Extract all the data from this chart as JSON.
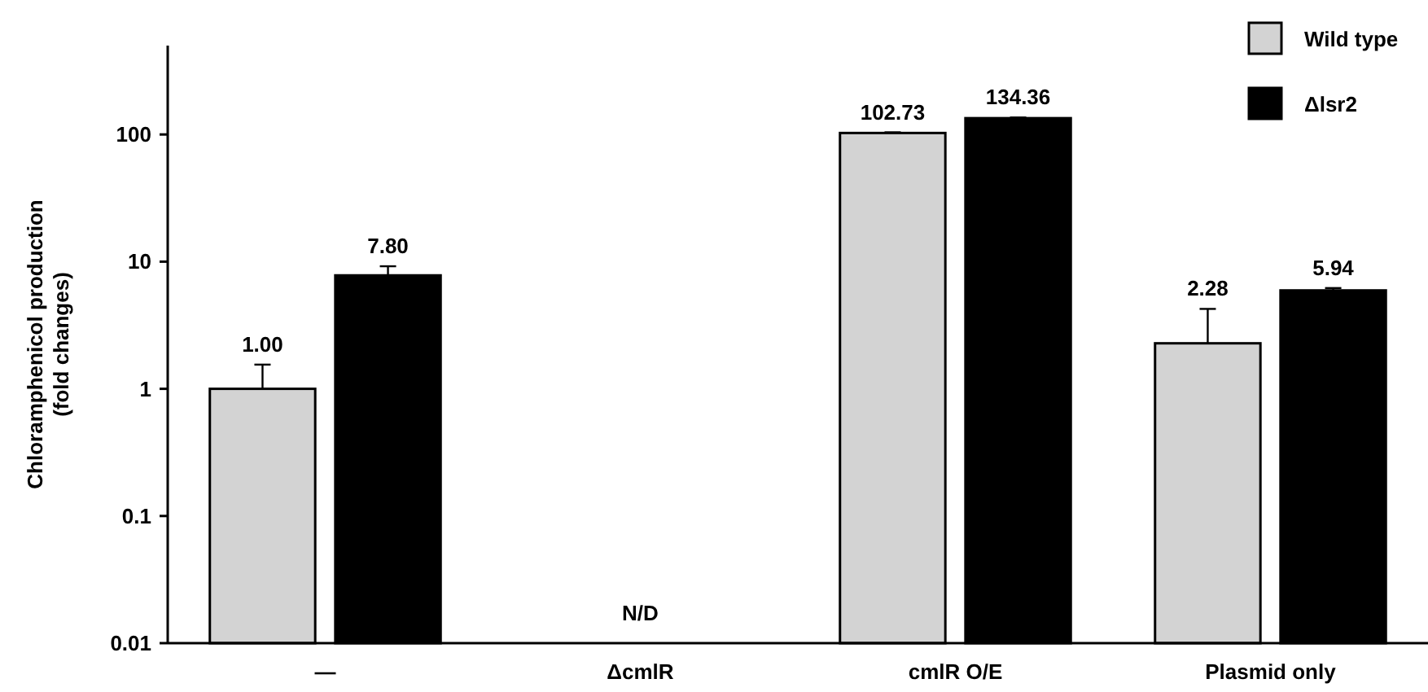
{
  "chart_data": {
    "type": "bar",
    "ylabel": "Chloramphenicol production\n(fold changes)",
    "categories": [
      "—",
      "ΔcmlR",
      "cmlR O/E",
      "Plasmid only"
    ],
    "series": [
      {
        "name": "Wild type",
        "color": "#d3d3d3",
        "values": [
          1.0,
          null,
          102.73,
          2.28
        ],
        "value_labels": [
          "1.00",
          null,
          "102.73",
          "2.28"
        ],
        "errors": [
          [
            1.0,
            1.55
          ],
          null,
          [
            102.73,
            104
          ],
          [
            2.28,
            4.25
          ]
        ]
      },
      {
        "name": "Δlsr2",
        "color": "#000000",
        "values": [
          7.8,
          null,
          134.36,
          5.94
        ],
        "value_labels": [
          "7.80",
          null,
          "134.36",
          "5.94"
        ],
        "errors": [
          [
            7.8,
            9.2
          ],
          null,
          [
            134.36,
            136
          ],
          [
            5.94,
            6.2
          ]
        ]
      }
    ],
    "annotations": [
      "N/D"
    ],
    "log": true,
    "ylim": [
      0.01,
      500
    ],
    "yticks": [
      0.01,
      0.1,
      1,
      10,
      100
    ],
    "legend": "top right",
    "grid": false
  }
}
